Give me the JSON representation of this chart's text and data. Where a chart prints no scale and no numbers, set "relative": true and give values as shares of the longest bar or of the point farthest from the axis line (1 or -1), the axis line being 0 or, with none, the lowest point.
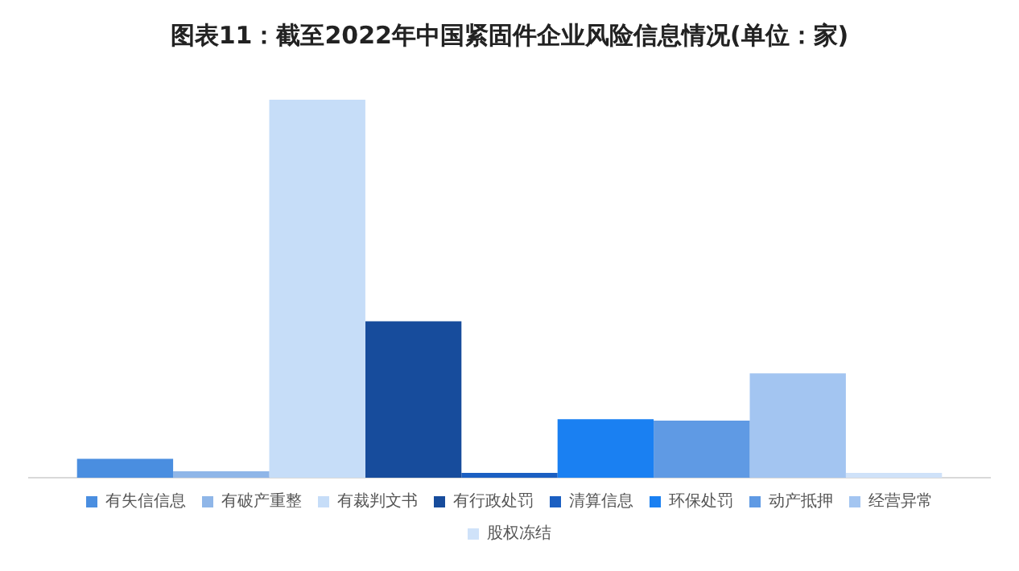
{
  "chart_data": {
    "type": "bar",
    "title": "图表11：截至2022年中国紧固件企业风险信息情况(单位：家)",
    "relative": true,
    "categories": [
      null
    ],
    "legend": "bottom",
    "grid": false,
    "series": [
      {
        "name": "有失信信息",
        "color": "#4a8ee0",
        "values": [
          0.05
        ]
      },
      {
        "name": "有破产重整",
        "color": "#8fb6e8",
        "values": [
          0.017
        ]
      },
      {
        "name": "有裁判文书",
        "color": "#c6ddf8",
        "values": [
          1
        ]
      },
      {
        "name": "有行政处罚",
        "color": "#174c9c",
        "values": [
          0.414
        ]
      },
      {
        "name": "清算信息",
        "color": "#1b5fc2",
        "values": [
          0.013
        ]
      },
      {
        "name": "环保处罚",
        "color": "#1a80f2",
        "values": [
          0.155
        ]
      },
      {
        "name": "动产抵押",
        "color": "#5f9ae4",
        "values": [
          0.151
        ]
      },
      {
        "name": "经营异常",
        "color": "#a3c5f1",
        "values": [
          0.276
        ]
      },
      {
        "name": "股权冻结",
        "color": "#cfe2f9",
        "values": [
          0.013
        ]
      }
    ]
  }
}
